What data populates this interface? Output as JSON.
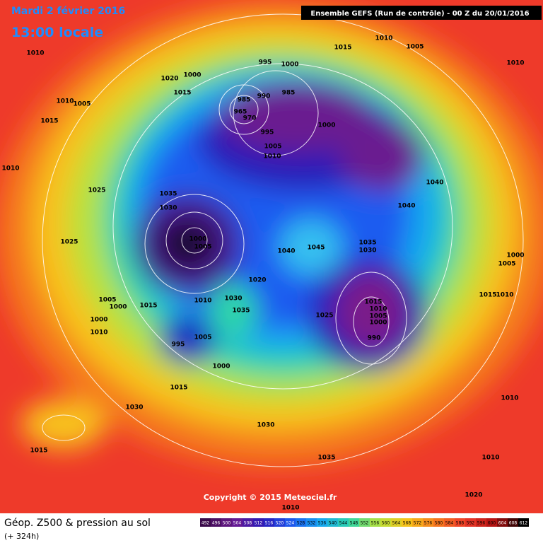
{
  "header": {
    "date": "Mardi 2 février 2016",
    "time": "13:00 locale",
    "run": "Ensemble GEFS  (Run de contrôle)  -  00 Z du 20/01/2016"
  },
  "footer": {
    "title": "Géop. Z500 & pression au sol",
    "lead": "(+ 324h)",
    "copyright": "Copyright © 2015 Meteociel.fr"
  },
  "scale": {
    "labels": [
      492,
      496,
      500,
      504,
      508,
      512,
      516,
      520,
      524,
      528,
      532,
      536,
      540,
      544,
      548,
      552,
      556,
      560,
      564,
      568,
      572,
      576,
      580,
      584,
      588,
      592,
      596,
      600,
      604,
      608,
      612
    ]
  },
  "isobars": {
    "labels": [
      "1010",
      "1015",
      "1010",
      "1005",
      "1010",
      "995",
      "1000",
      "1020",
      "1000",
      "1015",
      "985",
      "990",
      "985",
      "965",
      "970",
      "1000",
      "995",
      "1005",
      "1010",
      "1010",
      "1005",
      "1015",
      "1010",
      "1040",
      "1040",
      "1025",
      "1035",
      "1030",
      "1025",
      "1000",
      "1005",
      "1040",
      "1045",
      "1035",
      "1030",
      "1000",
      "1005",
      "1020",
      "1015",
      "1010",
      "1005",
      "1000",
      "1015",
      "1010",
      "1030",
      "1035",
      "1025",
      "1015",
      "1010",
      "1005",
      "1000",
      "990",
      "1000",
      "1010",
      "1005",
      "995",
      "1000",
      "1015",
      "1010",
      "1030",
      "1030",
      "1035",
      "1015",
      "1010",
      "1010",
      "1020"
    ]
  }
}
